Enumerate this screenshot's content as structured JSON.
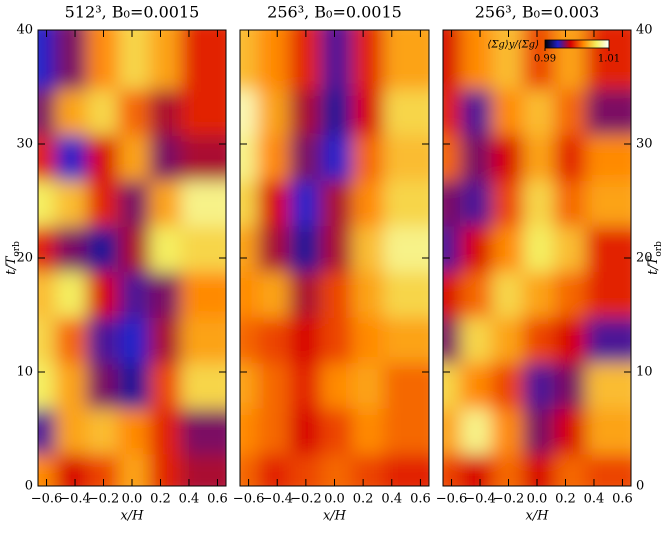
{
  "chart_data": [
    {
      "type": "heatmap",
      "title": "512³, B₀=0.0015",
      "xlabel": "x/H",
      "ylabel": {
        "text": "t/T",
        "sub": "orb"
      },
      "ylabel_side": "left",
      "xlim": [
        -0.66,
        0.66
      ],
      "ylim": [
        0,
        40
      ],
      "xticks": [
        {
          "value": -0.6,
          "label": "−0.6"
        },
        {
          "value": -0.4,
          "label": "−0.4"
        },
        {
          "value": -0.2,
          "label": "−0.2"
        },
        {
          "value": 0,
          "label": "0.0"
        },
        0.2,
        0.4,
        0.6
      ],
      "yticks": [
        0,
        10,
        20,
        30,
        40
      ],
      "x": [
        -0.55,
        -0.33,
        -0.11,
        0.11,
        0.33,
        0.55
      ],
      "y": [
        2,
        6,
        10,
        14,
        18,
        22,
        26,
        30,
        34,
        38
      ],
      "z": [
        [
          1.002,
          0.998,
          1.0,
          1.003,
          0.999,
          0.997
        ],
        [
          0.995,
          1.003,
          1.004,
          1.002,
          0.999,
          0.996
        ],
        [
          1.006,
          1.003,
          0.996,
          0.993,
          1.0,
          1.005
        ],
        [
          1.005,
          1.001,
          0.995,
          0.994,
          0.997,
          1.003
        ],
        [
          1.004,
          1.006,
          0.998,
          0.995,
          0.996,
          1.002
        ],
        [
          0.999,
          0.996,
          0.993,
          0.997,
          1.006,
          1.005
        ],
        [
          1.006,
          1.004,
          0.999,
          0.996,
          1.003,
          1.007
        ],
        [
          0.999,
          0.994,
          0.998,
          1.003,
          0.996,
          0.997
        ],
        [
          0.996,
          1.003,
          1.005,
          1.001,
          0.997,
          0.999
        ],
        [
          0.994,
          0.996,
          1.002,
          1.005,
          1.003,
          0.999
        ]
      ],
      "clim": [
        0.99,
        1.01
      ],
      "colormap": [
        "#000000",
        "#2020c8",
        "#d80000",
        "#ff8a00",
        "#f4ee60",
        "#ffffff"
      ]
    },
    {
      "type": "heatmap",
      "title": "256³, B₀=0.0015",
      "xlabel": "x/H",
      "ylabel_side": "none",
      "xlim": [
        -0.66,
        0.66
      ],
      "ylim": [
        0,
        40
      ],
      "xticks": [
        {
          "value": -0.6,
          "label": "−0.6"
        },
        {
          "value": -0.4,
          "label": "−0.4"
        },
        {
          "value": -0.2,
          "label": "−0.2"
        },
        {
          "value": 0,
          "label": "0.0"
        },
        0.2,
        0.4,
        0.6
      ],
      "yticks": [
        0,
        10,
        20,
        30,
        40
      ],
      "x": [
        -0.55,
        -0.33,
        -0.11,
        0.11,
        0.33,
        0.55
      ],
      "y": [
        2,
        6,
        10,
        14,
        18,
        22,
        26,
        30,
        34,
        38
      ],
      "z": [
        [
          1.001,
          0.999,
          1.0,
          1.001,
          1.0,
          0.999
        ],
        [
          1.002,
          1.001,
          0.998,
          1.0,
          1.002,
          1.001
        ],
        [
          1.003,
          1.001,
          0.999,
          1.002,
          1.003,
          1.001
        ],
        [
          1.001,
          1.0,
          0.998,
          1.0,
          1.002,
          1.003
        ],
        [
          1.002,
          1.003,
          0.997,
          1.0,
          1.003,
          1.005
        ],
        [
          1.003,
          0.997,
          0.993,
          0.997,
          1.004,
          1.007
        ],
        [
          1.005,
          0.998,
          0.994,
          0.997,
          1.002,
          1.005
        ],
        [
          1.007,
          1.002,
          0.996,
          0.994,
          1.001,
          1.004
        ],
        [
          1.008,
          1.003,
          0.997,
          0.993,
          0.998,
          1.005
        ],
        [
          1.004,
          1.002,
          0.999,
          0.995,
          0.999,
          1.003
        ]
      ],
      "clim": [
        0.99,
        1.01
      ],
      "colormap": [
        "#000000",
        "#2020c8",
        "#d80000",
        "#ff8a00",
        "#f4ee60",
        "#ffffff"
      ]
    },
    {
      "type": "heatmap",
      "title": "256³, B₀=0.003",
      "xlabel": "x/H",
      "ylabel": {
        "text": "t/T",
        "sub": "orb"
      },
      "ylabel_side": "right",
      "xlim": [
        -0.66,
        0.66
      ],
      "ylim": [
        0,
        40
      ],
      "xticks": [
        {
          "value": -0.6,
          "label": "−0.6"
        },
        {
          "value": -0.4,
          "label": "−0.4"
        },
        {
          "value": -0.2,
          "label": "−0.2"
        },
        {
          "value": 0,
          "label": "0.0"
        },
        0.2,
        0.4,
        0.6
      ],
      "yticks": [
        0,
        10,
        20,
        30,
        40
      ],
      "x": [
        -0.55,
        -0.33,
        -0.11,
        0.11,
        0.33,
        0.55
      ],
      "y": [
        2,
        6,
        10,
        14,
        18,
        22,
        26,
        30,
        34,
        38
      ],
      "z": [
        [
          1.0,
          0.998,
          1.001,
          0.998,
          1.001,
          1.0
        ],
        [
          1.003,
          1.007,
          1.002,
          0.996,
          0.998,
          1.003
        ],
        [
          1.005,
          1.002,
          1.0,
          0.995,
          0.996,
          1.004
        ],
        [
          0.996,
          1.005,
          1.003,
          1.0,
          0.998,
          0.995
        ],
        [
          0.998,
          1.001,
          1.005,
          1.003,
          1.001,
          0.999
        ],
        [
          0.995,
          0.998,
          1.002,
          1.006,
          1.004,
          0.999
        ],
        [
          0.996,
          0.995,
          1.0,
          1.005,
          1.001,
          1.003
        ],
        [
          1.001,
          0.996,
          0.998,
          1.003,
          0.999,
          1.002
        ],
        [
          0.999,
          0.995,
          1.002,
          1.004,
          1.001,
          0.996
        ],
        [
          0.998,
          1.002,
          1.004,
          1.0,
          1.003,
          0.999
        ]
      ],
      "clim": [
        0.99,
        1.01
      ],
      "colormap": [
        "#000000",
        "#2020c8",
        "#d80000",
        "#ff8a00",
        "#f4ee60",
        "#ffffff"
      ],
      "colorbar": {
        "label": "⟨Σg⟩y/⟨Σg⟩",
        "ticks": [
          0.99,
          1.01
        ]
      }
    }
  ]
}
